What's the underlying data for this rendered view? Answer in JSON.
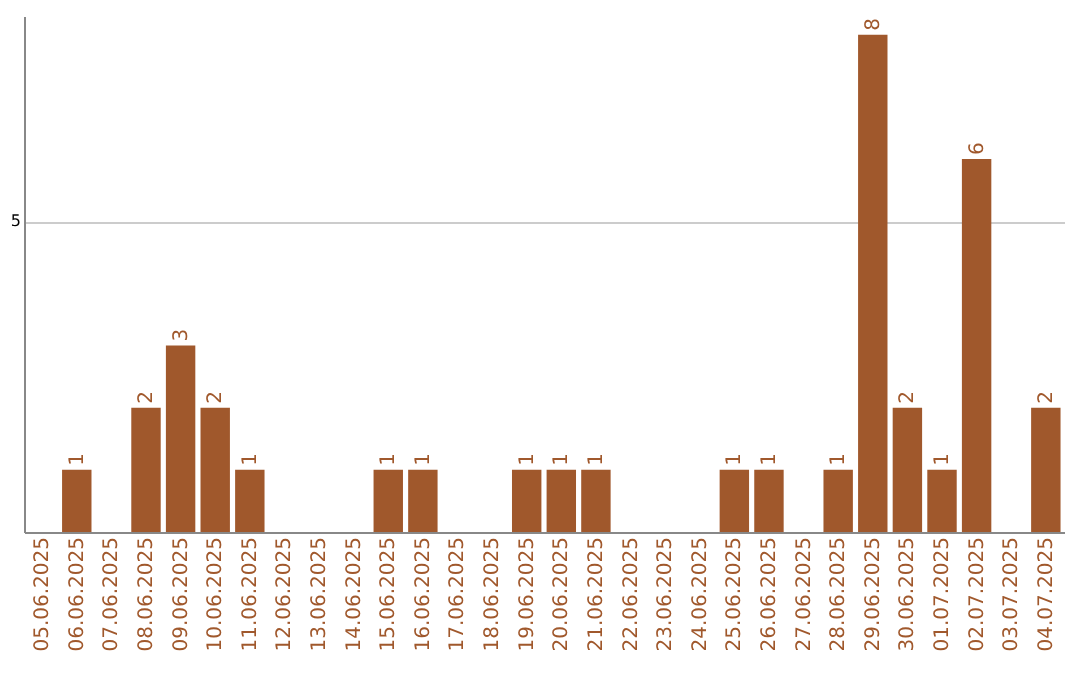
{
  "chart_data": {
    "type": "bar",
    "categories": [
      "05.06.2025",
      "06.06.2025",
      "07.06.2025",
      "08.06.2025",
      "09.06.2025",
      "10.06.2025",
      "11.06.2025",
      "12.06.2025",
      "13.06.2025",
      "14.06.2025",
      "15.06.2025",
      "16.06.2025",
      "17.06.2025",
      "18.06.2025",
      "19.06.2025",
      "20.06.2025",
      "21.06.2025",
      "22.06.2025",
      "23.06.2025",
      "24.06.2025",
      "25.06.2025",
      "26.06.2025",
      "27.06.2025",
      "28.06.2025",
      "29.06.2025",
      "30.06.2025",
      "01.07.2025",
      "02.07.2025",
      "03.07.2025",
      "04.07.2025"
    ],
    "values": [
      0,
      1,
      0,
      2,
      3,
      2,
      1,
      0,
      0,
      0,
      1,
      1,
      0,
      0,
      1,
      1,
      1,
      0,
      0,
      0,
      1,
      1,
      0,
      1,
      8,
      2,
      1,
      6,
      0,
      2
    ],
    "value_labels": [
      null,
      "1",
      null,
      "2",
      "3",
      "2",
      "1",
      null,
      null,
      null,
      "1",
      "1",
      null,
      null,
      "1",
      "1",
      "1",
      null,
      null,
      null,
      "1",
      "1",
      null,
      "1",
      "8",
      "2",
      "1",
      "6",
      null,
      "2"
    ],
    "color": "#a0582c",
    "ylim": [
      0,
      8.3
    ],
    "yticks": [
      5
    ],
    "grid": "y"
  }
}
